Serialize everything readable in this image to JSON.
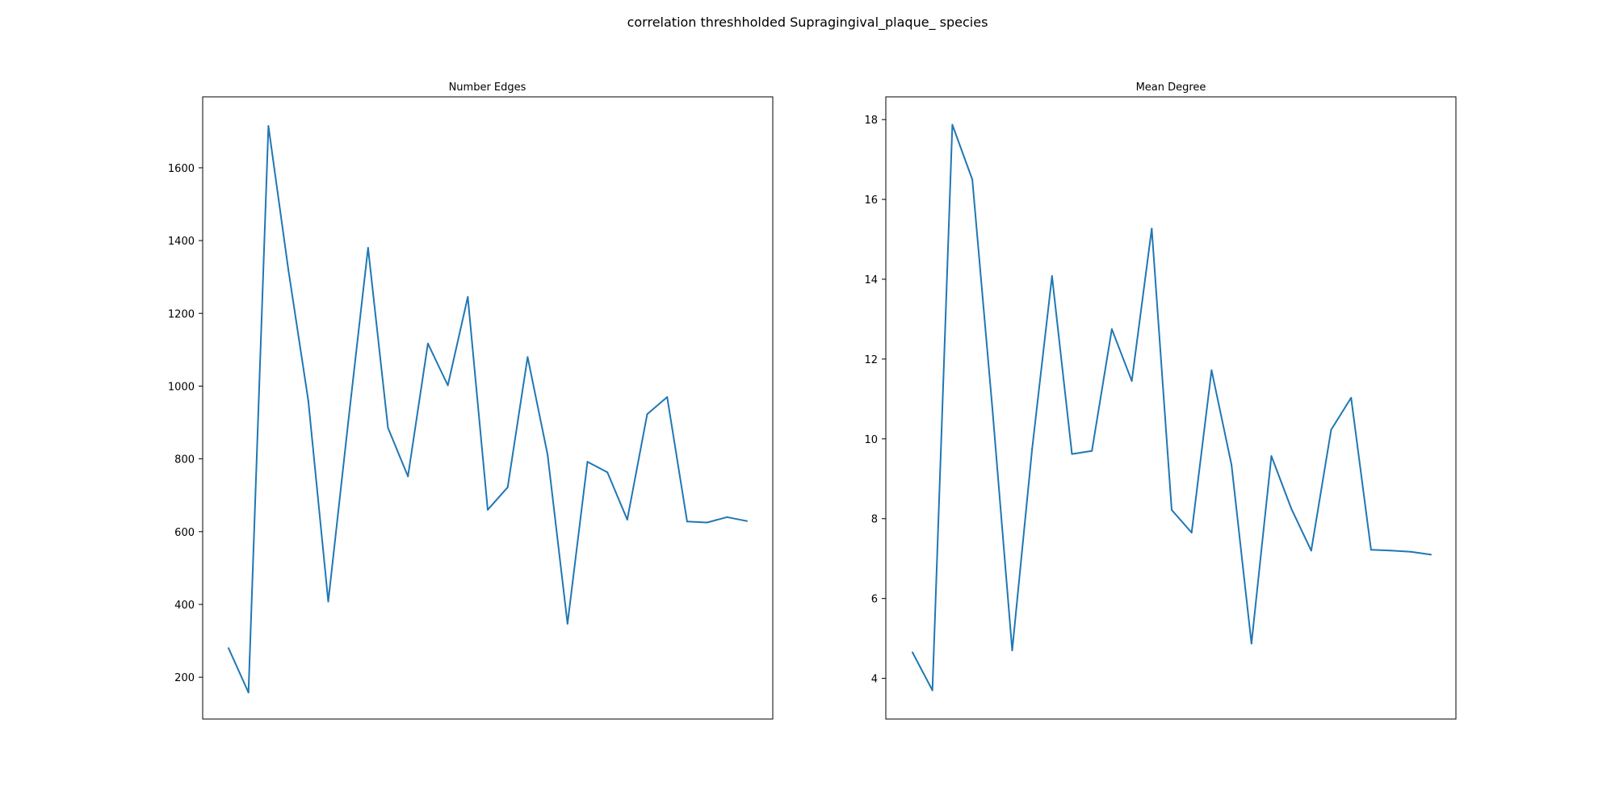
{
  "figure": {
    "suptitle": "correlation threshholded Supragingival_plaque_ species",
    "line_color": "#1f77b4"
  },
  "chart_data": [
    {
      "type": "line",
      "title": "Number Edges",
      "xlabel": "",
      "ylabel": "",
      "x_ticks_shown": false,
      "grid": false,
      "legend": "none",
      "ylim": [
        85,
        1795
      ],
      "yticks": [
        200,
        400,
        600,
        800,
        1000,
        1200,
        1400,
        1600
      ],
      "values": [
        280,
        158,
        1715,
        1320,
        960,
        408,
        900,
        1380,
        885,
        752,
        1117,
        1002,
        1245,
        660,
        722,
        1080,
        812,
        347,
        792,
        763,
        633,
        923,
        970,
        628,
        625,
        640,
        629
      ]
    },
    {
      "type": "line",
      "title": "Mean Degree",
      "xlabel": "",
      "ylabel": "",
      "x_ticks_shown": false,
      "grid": false,
      "legend": "none",
      "ylim": [
        2.98,
        18.57
      ],
      "yticks": [
        4,
        6,
        8,
        10,
        12,
        14,
        16,
        18
      ],
      "values": [
        4.65,
        3.7,
        17.87,
        16.5,
        10.8,
        4.7,
        9.75,
        14.08,
        9.62,
        9.7,
        12.75,
        11.45,
        15.27,
        8.22,
        7.65,
        11.72,
        9.35,
        4.87,
        9.57,
        8.25,
        7.2,
        10.23,
        11.03,
        7.22,
        7.2,
        7.17,
        7.1
      ]
    }
  ]
}
